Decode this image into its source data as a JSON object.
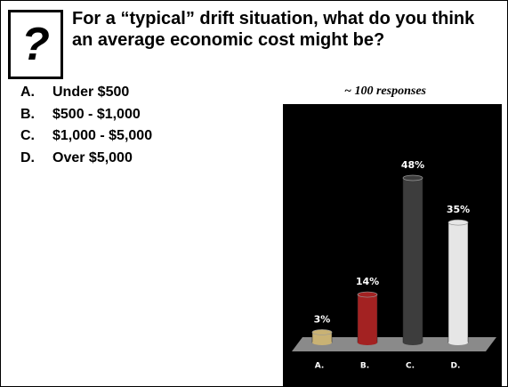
{
  "question": "For a “typical” drift situation, what do you think an average economic cost might be?",
  "icon": "?",
  "options": [
    {
      "letter": "A.",
      "text": "Under $500"
    },
    {
      "letter": "B.",
      "text": "$500 - $1,000"
    },
    {
      "letter": "C.",
      "text": "$1,000 - $5,000"
    },
    {
      "letter": "D.",
      "text": "Over $5,000"
    }
  ],
  "note": "~ 100 responses",
  "chart_data": {
    "type": "bar",
    "categories": [
      "A.",
      "B.",
      "C.",
      "D."
    ],
    "values": [
      3,
      14,
      48,
      35
    ],
    "value_labels": [
      "3%",
      "14%",
      "48%",
      "35%"
    ],
    "colors": [
      "#c9b274",
      "#a32222",
      "#3d3d3d",
      "#e6e6e6"
    ]
  }
}
